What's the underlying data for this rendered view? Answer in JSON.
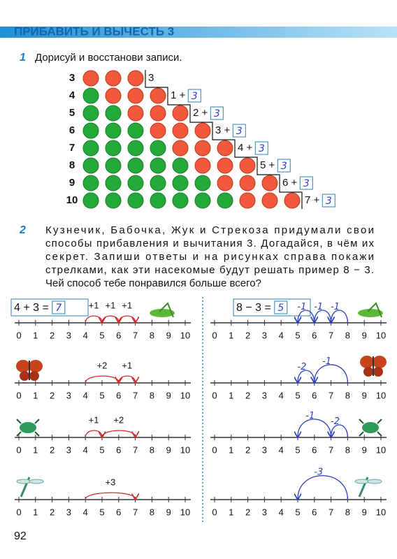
{
  "header": {
    "title": "ПРИБАВИТЬ И ВЫЧЕСТЬ 3"
  },
  "task1": {
    "number": "1",
    "text": "Дорисуй и восстанови записи.",
    "rows": [
      {
        "label": "3",
        "green": 0,
        "red": 3,
        "record": "3"
      },
      {
        "label": "4",
        "green": 1,
        "red": 3,
        "record": "1 +",
        "answer": "3"
      },
      {
        "label": "5",
        "green": 2,
        "red": 3,
        "record": "2 +",
        "answer": "3"
      },
      {
        "label": "6",
        "green": 3,
        "red": 3,
        "record": "3 +",
        "answer": "3"
      },
      {
        "label": "7",
        "green": 4,
        "red": 3,
        "record": "4 +",
        "answer": "3"
      },
      {
        "label": "8",
        "green": 5,
        "red": 3,
        "record": "5 +",
        "answer": "3"
      },
      {
        "label": "9",
        "green": 6,
        "red": 3,
        "record": "6 +",
        "answer": "3"
      },
      {
        "label": "10",
        "green": 7,
        "red": 3,
        "record": "7 +",
        "answer": "3"
      }
    ]
  },
  "task2": {
    "number": "2",
    "lines": [
      "Кузнечик, Бабочка, Жук и Стрекоза придумали свои",
      "способы прибавления и вычитания 3. Догадайся, в чём их",
      "секрет. Запиши ответы и на рисунках справа покажи",
      "стрелками, как эти насекомые будут решать пример 8 − 3.",
      "Чей способ тебе понравился больше всего?"
    ],
    "number_line": [
      0,
      1,
      2,
      3,
      4,
      5,
      6,
      7,
      8,
      9,
      10
    ],
    "left": {
      "equation": "4 + 3 =",
      "answer": "7",
      "panels": [
        {
          "jumps": [
            "+1",
            "+1",
            "+1"
          ]
        },
        {
          "jumps": [
            "+2",
            "+1"
          ]
        },
        {
          "jumps": [
            "+1",
            "+2"
          ]
        },
        {
          "jumps": [
            "+3"
          ]
        }
      ]
    },
    "right": {
      "equation": "8 − 3 =",
      "answer": "5",
      "panels": [
        {
          "jumps": [
            "-1",
            "-1",
            "-1"
          ]
        },
        {
          "jumps": [
            "-1",
            "-2"
          ]
        },
        {
          "jumps": [
            "-2",
            "-1"
          ]
        },
        {
          "jumps": [
            "-3"
          ]
        }
      ]
    }
  },
  "page_number": "92"
}
